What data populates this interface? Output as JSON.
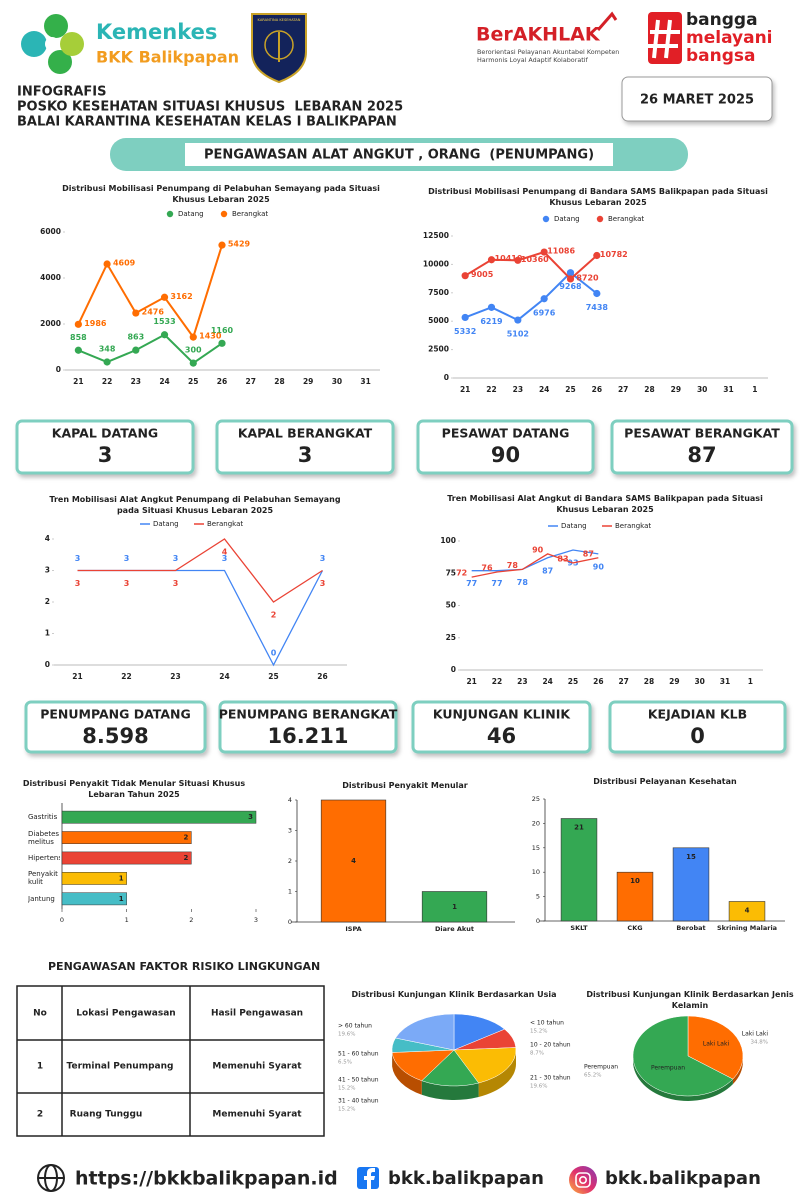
{
  "header": {
    "logo_name": "Kemenkes",
    "logo_unit": "BKK Balikpapan",
    "badge_text": "KARANTINA KESEHATAN",
    "berakhlak": "BerAKHLAK",
    "berakhlak_line1": "Berorientasi Pelayanan Akuntabel Kompeten",
    "berakhlak_line2": "Harmonis Loyal Adaptif Kolaboratif",
    "tagline": [
      "bangga",
      "melayani",
      "bangsa"
    ],
    "label": "INFOGRAFIS",
    "title_line1": "POSKO KESEHATAN SITUASI KHUSUS  LEBARAN 2025",
    "title_line2": "BALAI KARANTINA KESEHATAN KELAS I BALIKPAPAN",
    "date": "26 MARET 2025"
  },
  "section_title": "PENGAWASAN ALAT ANGKUT , ORANG  (PENUMPANG)",
  "stats": [
    {
      "label": "KAPAL DATANG",
      "value": "3"
    },
    {
      "label": "KAPAL BERANGKAT",
      "value": "3"
    },
    {
      "label": "PESAWAT DATANG",
      "value": "90"
    },
    {
      "label": "PESAWAT BERANGKAT",
      "value": "87"
    },
    {
      "label": "PENUMPANG DATANG",
      "value": "8.598"
    },
    {
      "label": "PENUMPANG BERANGKAT",
      "value": "16.211"
    },
    {
      "label": "KUNJUNGAN KLINIK",
      "value": "46"
    },
    {
      "label": "KEJADIAN KLB",
      "value": "0"
    }
  ],
  "chart_data": [
    {
      "type": "line",
      "title": "Distribusi Mobilisasi Penumpang di Pelabuhan Semayang pada Situasi Khusus Lebaran 2025",
      "categories": [
        "21",
        "22",
        "23",
        "24",
        "25",
        "26",
        "27",
        "28",
        "29",
        "30",
        "31"
      ],
      "series": [
        {
          "name": "Datang",
          "color": "#34a853",
          "values": [
            858,
            348,
            863,
            1533,
            300,
            1160,
            null,
            null,
            null,
            null,
            null
          ]
        },
        {
          "name": "Berangkat",
          "color": "#ff6d01",
          "values": [
            1986,
            4609,
            2476,
            3162,
            1430,
            5429,
            null,
            null,
            null,
            null,
            null
          ]
        }
      ],
      "ylim": [
        0,
        6000
      ],
      "yticks": [
        0,
        2000,
        4000,
        6000
      ],
      "markers": true
    },
    {
      "type": "line",
      "title": "Distribusi Mobilisasi Penumpang di Bandara SAMS Balikpapan pada Situasi Khusus Lebaran 2025",
      "categories": [
        "21",
        "22",
        "23",
        "24",
        "25",
        "26",
        "27",
        "28",
        "29",
        "30",
        "31",
        "1"
      ],
      "series": [
        {
          "name": "Datang",
          "color": "#4285f4",
          "values": [
            5332,
            6219,
            5102,
            6976,
            9268,
            7438,
            null,
            null,
            null,
            null,
            null,
            null
          ]
        },
        {
          "name": "Berangkat",
          "color": "#ea4335",
          "values": [
            9005,
            10410,
            10360,
            11086,
            8720,
            10782,
            null,
            null,
            null,
            null,
            null,
            null
          ]
        }
      ],
      "ylim": [
        0,
        12500
      ],
      "yticks": [
        0,
        2500,
        5000,
        7500,
        10000,
        12500
      ],
      "markers": true
    },
    {
      "type": "line",
      "title": "Tren Mobilisasi Alat Angkut Penumpang di Pelabuhan Semayang pada Situasi Khusus Lebaran 2025",
      "categories": [
        "21",
        "22",
        "23",
        "24",
        "25",
        "26"
      ],
      "series": [
        {
          "name": "Datang",
          "color": "#4285f4",
          "values": [
            3,
            3,
            3,
            3,
            0,
            3
          ]
        },
        {
          "name": "Berangkat",
          "color": "#ea4335",
          "values": [
            3,
            3,
            3,
            4,
            2,
            3
          ]
        }
      ],
      "ylim": [
        0,
        4
      ],
      "yticks": [
        0,
        1,
        2,
        3,
        4
      ],
      "markers": false
    },
    {
      "type": "line",
      "title": "Tren Mobilisasi Alat Angkut di Bandara SAMS Balikpapan pada Situasi Khusus Lebaran 2025",
      "categories": [
        "21",
        "22",
        "23",
        "24",
        "25",
        "26",
        "27",
        "28",
        "29",
        "30",
        "31",
        "1"
      ],
      "series": [
        {
          "name": "Datang",
          "color": "#4285f4",
          "values": [
            77,
            77,
            78,
            87,
            93,
            90,
            null,
            null,
            null,
            null,
            null,
            null
          ]
        },
        {
          "name": "Berangkat",
          "color": "#ea4335",
          "values": [
            72,
            76,
            78,
            90,
            83,
            87,
            null,
            null,
            null,
            null,
            null,
            null
          ]
        }
      ],
      "ylim": [
        0,
        100
      ],
      "yticks": [
        0,
        25,
        50,
        75,
        100
      ],
      "markers": false
    },
    {
      "type": "hbar",
      "title": "Distribusi Penyakit Tidak Menular Situasi Khusus Lebaran Tahun 2025",
      "categories": [
        "Gastritis",
        "Diabetes melitus",
        "Hipertensi",
        "Penyakit kulit",
        "Jantung"
      ],
      "values": [
        3,
        2,
        2,
        1,
        1
      ],
      "colors": [
        "#34a853",
        "#ff6d01",
        "#ea4335",
        "#fbbc04",
        "#46bdc6"
      ],
      "xlim": [
        0,
        3
      ],
      "xticks": [
        0,
        1,
        2,
        3
      ]
    },
    {
      "type": "bar",
      "title": "Distribusi Penyakit Menular",
      "categories": [
        "ISPA",
        "Diare Akut"
      ],
      "values": [
        4,
        1
      ],
      "colors": [
        "#ff6d01",
        "#34a853"
      ],
      "ylim": [
        0,
        4
      ],
      "yticks": [
        0,
        1,
        2,
        3,
        4
      ]
    },
    {
      "type": "bar",
      "title": "Distribusi  Pelayanan Kesehatan",
      "categories": [
        "SKLT",
        "CKG",
        "Berobat",
        "Skrining Malaria"
      ],
      "values": [
        21,
        10,
        15,
        4
      ],
      "colors": [
        "#34a853",
        "#ff6d01",
        "#4285f4",
        "#fbbc04"
      ],
      "ylim": [
        0,
        25
      ],
      "yticks": [
        0,
        5,
        10,
        15,
        20,
        25
      ]
    },
    {
      "type": "pie",
      "title": "Distribusi Kunjungan Klinik Berdasarkan Usia",
      "categories": [
        "< 10 tahun",
        "10 - 20 tahun",
        "21 - 30 tahun",
        "31 - 40 tahun",
        "41 - 50 tahun",
        "51 - 60 tahun",
        "> 60 tahun"
      ],
      "values": [
        15.2,
        8.7,
        19.6,
        15.2,
        15.2,
        6.5,
        19.6
      ],
      "value_labels": [
        "15.2%",
        "8.7%",
        "19.6%",
        "15.2%",
        "15.2%",
        "6.5%",
        "19.6%"
      ],
      "colors": [
        "#4285f4",
        "#ea4335",
        "#fbbc04",
        "#34a853",
        "#ff6d01",
        "#46bdc6",
        "#7baaf7"
      ]
    },
    {
      "type": "pie",
      "title": "Distribusi Kunjungan Klinik Berdasarkan Jenis Kelamin",
      "categories": [
        "Laki Laki",
        "Perempuan"
      ],
      "values": [
        34.8,
        65.2
      ],
      "value_labels": [
        "34.8%",
        "65.2%"
      ],
      "colors": [
        "#ff6d01",
        "#34a853"
      ]
    }
  ],
  "environment": {
    "title": "PENGAWASAN FAKTOR RISIKO LINGKUNGAN",
    "table": {
      "header": [
        "No",
        "Lokasi Pengawasan",
        "Hasil Pengawasan"
      ],
      "rows": [
        [
          "1",
          "Terminal Penumpang",
          "Memenuhi Syarat"
        ],
        [
          "2",
          "Ruang Tunggu",
          "Memenuhi Syarat"
        ]
      ]
    }
  },
  "footer": {
    "website": "https://bkkbalikpapan.id",
    "facebook": "bkk.balikpapan",
    "instagram": "bkk.balikpapan"
  }
}
